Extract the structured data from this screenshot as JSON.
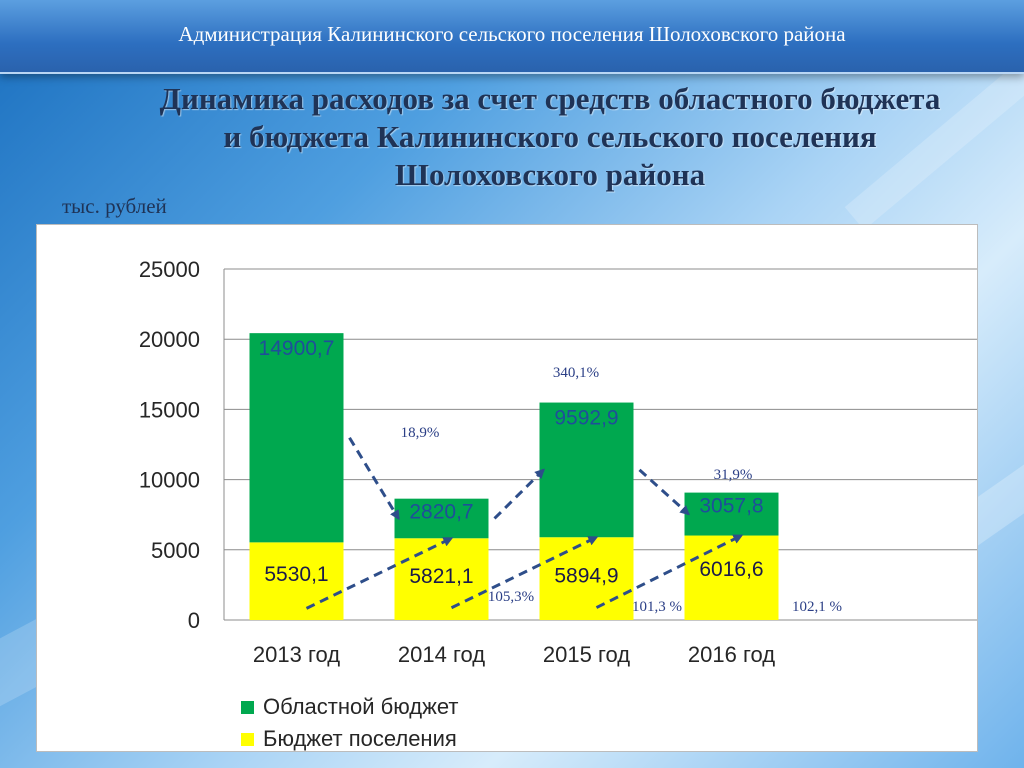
{
  "header": {
    "text": "Администрация Калининского сельского поселения Шолоховского района"
  },
  "title_lines": [
    "Динамика расходов за счет средств областного бюджета",
    "и бюджета Калининского сельского поселения",
    "Шолоховского района"
  ],
  "unit_label": "тыс. рублей",
  "colors": {
    "regional": "#00a84f",
    "local": "#ffff00",
    "grid": "#8c8c8c",
    "regional_label": "#1f4e9a",
    "local_label": "#1a1a4a",
    "arrow": "#2e4e8a",
    "pct": "#2b3f86"
  },
  "chart_data": {
    "type": "bar",
    "stacked": true,
    "categories": [
      "2013 год",
      "2014 год",
      "2015 год",
      "2016 год"
    ],
    "series": [
      {
        "name": "Бюджет поселения",
        "values": [
          5530.1,
          5821.1,
          5894.9,
          6016.6
        ],
        "labels": [
          "5530,1",
          "5821,1",
          "5894,9",
          "6016,6"
        ]
      },
      {
        "name": "Областной бюджет",
        "values": [
          14900.7,
          2820.7,
          9592.9,
          3057.8
        ],
        "labels": [
          "14900,7",
          "2820,7",
          "9592,9",
          "3057,8"
        ]
      }
    ],
    "ylim": [
      0,
      25000
    ],
    "yticks": [
      0,
      5000,
      10000,
      15000,
      20000,
      25000
    ],
    "ytick_labels": [
      "0",
      "5000",
      "10000",
      "15000",
      "20000",
      "25000"
    ],
    "grid": true,
    "legend_position": "bottom",
    "legend": [
      "Областной бюджет",
      "Бюджет поселения"
    ],
    "annotations": {
      "regional_change": [
        "18,9%",
        "340,1%",
        "31,9%"
      ],
      "local_change": [
        "105,3%",
        "101,3 %",
        "102,1 %"
      ]
    }
  }
}
